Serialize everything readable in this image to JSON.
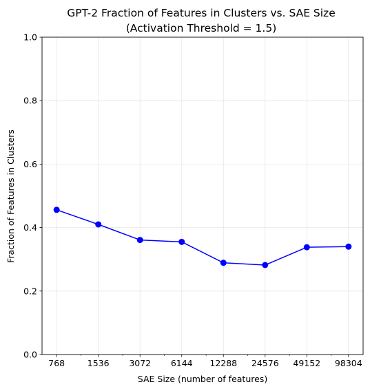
{
  "chart_data": {
    "type": "line",
    "title_line1": "GPT-2 Fraction of Features in Clusters vs. SAE Size",
    "title_line2": "(Activation Threshold = 1.5)",
    "xlabel": "SAE Size (number of features)",
    "ylabel": "Fraction of Features in Clusters",
    "x_scale": "log2",
    "x": [
      768,
      1536,
      3072,
      6144,
      12288,
      24576,
      49152,
      98304
    ],
    "x_tick_labels": [
      "768",
      "1536",
      "3072",
      "6144",
      "12288",
      "24576",
      "49152",
      "98304"
    ],
    "y": [
      0.456,
      0.41,
      0.361,
      0.355,
      0.289,
      0.282,
      0.338,
      0.34
    ],
    "ylim": [
      0.0,
      1.0
    ],
    "y_ticks": [
      0.0,
      0.2,
      0.4,
      0.6,
      0.8,
      1.0
    ],
    "y_tick_labels": [
      "0.0",
      "0.2",
      "0.4",
      "0.6",
      "0.8",
      "1.0"
    ],
    "grid": true,
    "line_color": "#0000ff",
    "marker": "circle"
  }
}
